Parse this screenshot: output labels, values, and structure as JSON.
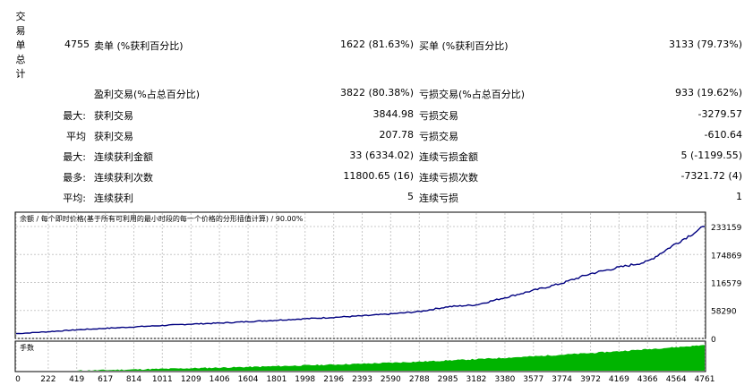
{
  "summary": {
    "vertical_label": [
      "交",
      "易",
      "单",
      "总",
      "计"
    ],
    "total_trades": "4755",
    "sell_label": "卖单 (%获利百分比)",
    "sell_value": "1622 (81.63%)",
    "buy_label": "买单 (%获利百分比)",
    "buy_value": "3133 (79.73%)"
  },
  "stats": {
    "profit_trades_label": "盈利交易(%占总百分比)",
    "profit_trades_value": "3822 (80.38%)",
    "loss_trades_label": "亏损交易(%占总百分比)",
    "loss_trades_value": "933 (19.62%)",
    "rows": [
      {
        "prefix": "最大:",
        "left_label": "获利交易",
        "left_value": "3844.98",
        "right_label": "亏损交易",
        "right_value": "-3279.57"
      },
      {
        "prefix": "平均",
        "left_label": "获利交易",
        "left_value": "207.78",
        "right_label": "亏损交易",
        "right_value": "-610.64"
      },
      {
        "prefix": "最大:",
        "left_label": "连续获利金额",
        "left_value": "33 (6334.02)",
        "right_label": "连续亏损金额",
        "right_value": "5 (-1199.55)"
      },
      {
        "prefix": "最多:",
        "left_label": "连续获利次数",
        "left_value": "11800.65 (16)",
        "right_label": "连续亏损次数",
        "right_value": "-7321.72 (4)"
      },
      {
        "prefix": "平均:",
        "left_label": "连续获利",
        "left_value": "5",
        "right_label": "连续亏损",
        "right_value": "1"
      }
    ]
  },
  "chart_data": [
    {
      "type": "line",
      "title": "余额 / 每个即时价格(基于所有可利用的最小时段的每一个价格的分形插值计算) / 90.00%",
      "y_ticks": [
        "233159",
        "174869",
        "116579",
        "58290",
        "0"
      ],
      "ylim": [
        0,
        233159
      ],
      "xlim": [
        0,
        4761
      ],
      "series": [
        {
          "color": "#000080",
          "x": [
            0,
            222,
            419,
            617,
            814,
            1011,
            1209,
            1406,
            1604,
            1801,
            1998,
            2196,
            2393,
            2590,
            2788,
            2985,
            3182,
            3380,
            3577,
            3774,
            3972,
            4169,
            4366,
            4564,
            4761
          ],
          "y": [
            10000,
            14000,
            18000,
            21000,
            24000,
            27000,
            30000,
            32000,
            35000,
            38000,
            41000,
            44000,
            47000,
            51000,
            56000,
            66000,
            70000,
            85000,
            100000,
            115000,
            135000,
            148000,
            160000,
            198000,
            233159
          ]
        }
      ],
      "grid": true
    },
    {
      "type": "area",
      "title": "手数",
      "x_ticks": [
        "0",
        "222",
        "419",
        "617",
        "814",
        "1011",
        "1209",
        "1406",
        "1604",
        "1801",
        "1998",
        "2196",
        "2393",
        "2590",
        "2788",
        "2985",
        "3182",
        "3380",
        "3577",
        "3774",
        "3972",
        "4169",
        "4366",
        "4564",
        "4761"
      ],
      "xlim": [
        0,
        4761
      ],
      "series": [
        {
          "color": "#00b400",
          "x": [
            0,
            222,
            419,
            617,
            814,
            1011,
            1209,
            1406,
            1604,
            1801,
            1998,
            2196,
            2393,
            2590,
            2788,
            2985,
            3182,
            3380,
            3577,
            3774,
            3972,
            4169,
            4366,
            4564,
            4761
          ],
          "y": [
            0,
            0,
            0,
            0.3,
            0.6,
            0.9,
            1.2,
            1.5,
            1.8,
            2.2,
            2.6,
            3.0,
            3.4,
            3.9,
            4.4,
            5.0,
            5.6,
            6.3,
            7.0,
            7.8,
            8.6,
            9.5,
            10.5,
            11.5,
            12.5
          ]
        }
      ],
      "grid": true
    }
  ]
}
